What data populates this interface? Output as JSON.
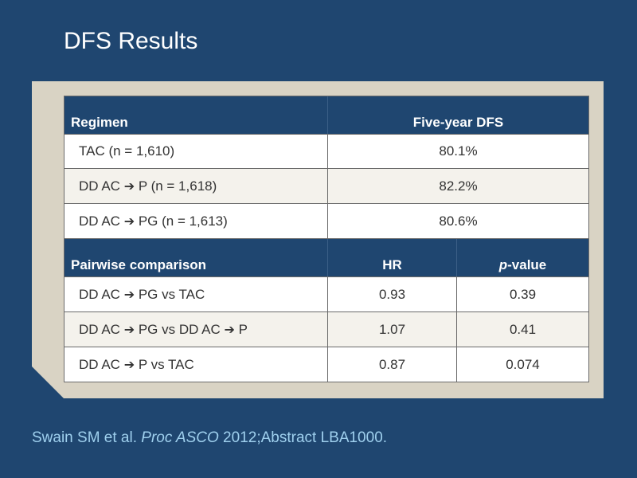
{
  "slide": {
    "title": "DFS Results",
    "citation": {
      "authors": "Swain SM et al. ",
      "journal": "Proc ASCO",
      "rest": " 2012;Abstract LBA1000."
    }
  },
  "table1": {
    "header": {
      "regimen": "Regimen",
      "dfs": "Five-year DFS"
    },
    "rows": [
      {
        "regimen": "TAC (n = 1,610)",
        "dfs": "80.1%"
      },
      {
        "regimen_a": "DD AC ",
        "arrow": "➔",
        "regimen_b": " P (n = 1,618)",
        "dfs": "82.2%"
      },
      {
        "regimen_a": "DD AC ",
        "arrow": "➔",
        "regimen_b": " PG (n = 1,613)",
        "dfs": "80.6%"
      }
    ]
  },
  "table2": {
    "header": {
      "comparison": "Pairwise comparison",
      "hr": "HR",
      "p_italic": "p",
      "p_rest": "-value"
    },
    "rows": [
      {
        "a": "DD AC ",
        "arrow": "➔",
        "b": " PG vs TAC",
        "hr": "0.93",
        "p": "0.39"
      },
      {
        "a": "DD AC ",
        "arrow": "➔",
        "b": " PG vs DD AC ",
        "arrow2": "➔",
        "c": " P",
        "hr": "1.07",
        "p": "0.41"
      },
      {
        "a": "DD AC ",
        "arrow": "➔",
        "b": " P vs TAC",
        "hr": "0.87",
        "p": "0.074"
      }
    ]
  }
}
